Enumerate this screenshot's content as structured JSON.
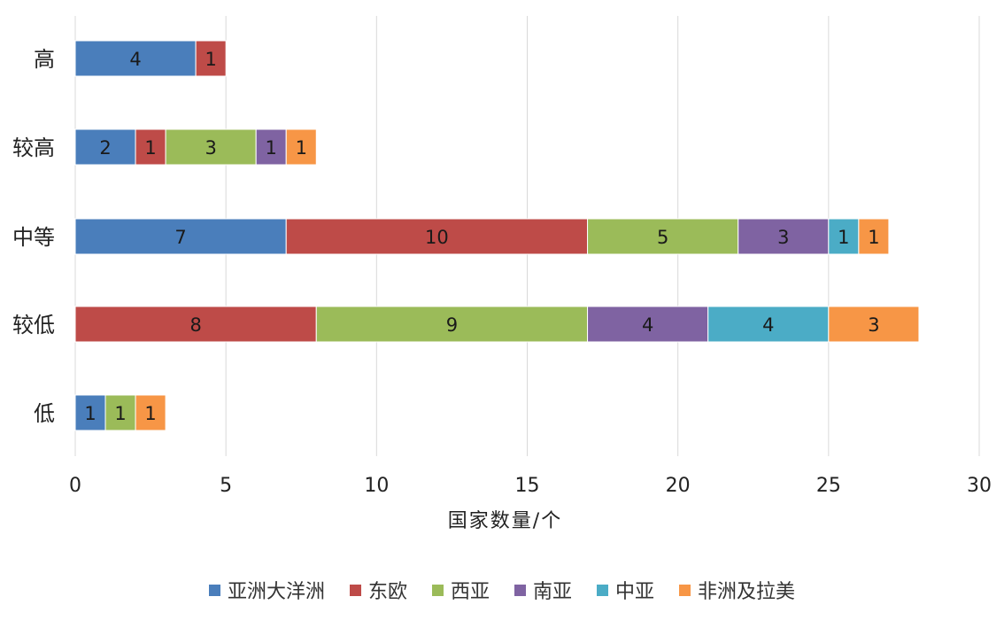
{
  "chart_data": {
    "type": "bar",
    "orientation": "horizontal",
    "stacked": true,
    "categories": [
      "高",
      "较高",
      "中等",
      "较低",
      "低"
    ],
    "series": [
      {
        "name": "亚洲大洋洲",
        "color": "#4a7ebb",
        "values": [
          4,
          2,
          7,
          0,
          1
        ]
      },
      {
        "name": "东欧",
        "color": "#be4b48",
        "values": [
          1,
          1,
          10,
          8,
          0
        ]
      },
      {
        "name": "西亚",
        "color": "#9bbb59",
        "values": [
          0,
          3,
          5,
          9,
          1
        ]
      },
      {
        "name": "南亚",
        "color": "#7f63a2",
        "values": [
          0,
          1,
          3,
          4,
          0
        ]
      },
      {
        "name": "中亚",
        "color": "#4bacc6",
        "values": [
          0,
          0,
          1,
          4,
          0
        ]
      },
      {
        "name": "非洲及拉美",
        "color": "#f79646",
        "values": [
          0,
          1,
          1,
          3,
          1
        ]
      }
    ],
    "xlabel": "国家数量/个",
    "ylabel": "",
    "title": "",
    "xlim": [
      0,
      30
    ],
    "xticks": [
      "0",
      "5",
      "10",
      "15",
      "20",
      "25",
      "30"
    ],
    "grid": "vertical",
    "legend_position": "bottom"
  }
}
